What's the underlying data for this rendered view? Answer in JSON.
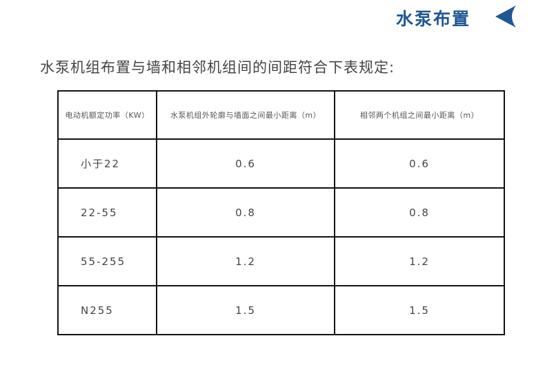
{
  "header": {
    "title": "水泵布置",
    "accent_color": "#1f5794",
    "icon": "arrow-left-icon"
  },
  "intro": "水泵机组布置与墙和相邻机组间的间距符合下表规定:",
  "table": {
    "headers": [
      "电动机额定功率（KW）",
      "水泵机组外轮廓与墙面之间最小距离（m）",
      "相邻两个机组之间最小距离（m）"
    ],
    "rows": [
      [
        "小于22",
        "0.6",
        "0.6"
      ],
      [
        "22-55",
        "0.8",
        "0.8"
      ],
      [
        "55-255",
        "1.2",
        "1.2"
      ],
      [
        "N255",
        "1.5",
        "1.5"
      ]
    ]
  }
}
